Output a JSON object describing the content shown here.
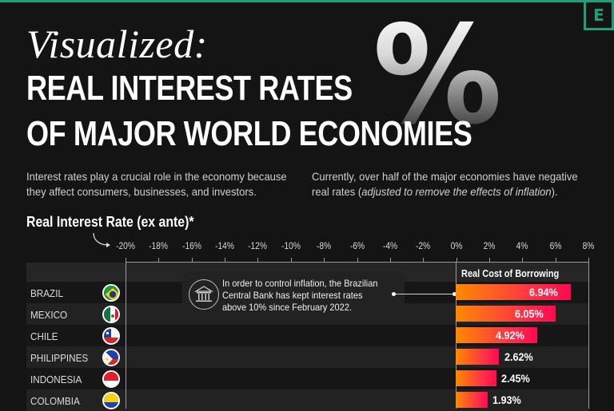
{
  "header": {
    "kicker": "Visualized:",
    "title_line1": "REAL INTEREST RATES",
    "title_line2": "OF MAJOR WORLD ECONOMIES",
    "percent_glyph": "%",
    "logo_letter": "E",
    "accent_color": "#1aa179"
  },
  "intro": {
    "left_line1": "Interest rates play a crucial role in the economy because",
    "left_line2": "they affect consumers, businesses, and investors.",
    "right_line1": "Currently, over half of the major economies have negative",
    "right_line2_prefix": "real rates (",
    "right_line2_italic": "adjusted to remove the effects of inflation",
    "right_line2_suffix": ")."
  },
  "chart_data": {
    "type": "bar",
    "orientation": "horizontal",
    "title": "Real Interest Rate (ex ante)*",
    "xlabel": "",
    "ylabel": "",
    "xlim": [
      -20,
      8
    ],
    "x_ticks": [
      "-20%",
      "-18%",
      "-16%",
      "-14%",
      "-12%",
      "-10%",
      "-8%",
      "-6%",
      "-4%",
      "-2%",
      "0%",
      "2%",
      "4%",
      "6%",
      "8%"
    ],
    "positive_region_label": "Real Cost of Borrowing",
    "categories": [
      "BRAZIL",
      "MEXICO",
      "CHILE",
      "PHILIPPINES",
      "INDONESIA",
      "COLOMBIA"
    ],
    "values": [
      6.94,
      6.05,
      4.92,
      2.62,
      2.45,
      1.93
    ],
    "value_labels": [
      "6.94%",
      "6.05%",
      "4.92%",
      "2.62%",
      "2.45%",
      "1.93%"
    ],
    "bar_gradient": [
      "#ff8a00",
      "#ff0a50"
    ],
    "annotation": {
      "target": "BRAZIL",
      "icon": "bank-icon",
      "line1": "In order to control inflation, the Brazilian",
      "line2": "Central Bank has kept interest rates",
      "line3": "above 10% since February 2022."
    },
    "grid": false,
    "legend": "none"
  }
}
